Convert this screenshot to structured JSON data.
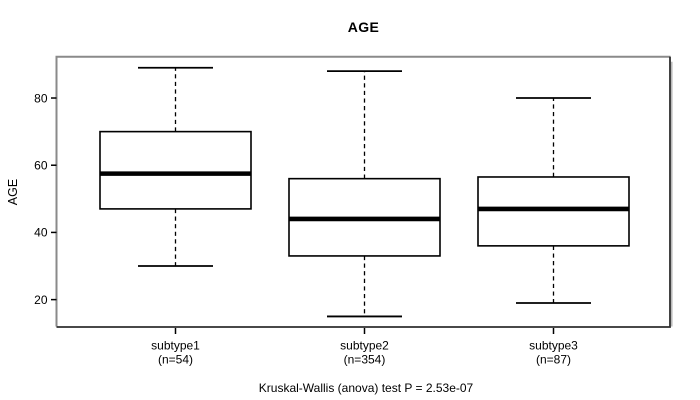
{
  "chart_data": {
    "type": "boxplot",
    "title": "AGE",
    "xlabel": "",
    "ylabel": "AGE",
    "caption": "Kruskal-Wallis (anova) test P = 2.53e-07",
    "ylim": [
      12,
      92
    ],
    "yticks": [
      20,
      40,
      60,
      80
    ],
    "grid": false,
    "legend": "none",
    "frame": true,
    "categories": [
      "subtype1",
      "subtype2",
      "subtype3"
    ],
    "category_counts": [
      "(n=54)",
      "(n=354)",
      "(n=87)"
    ],
    "series": [
      {
        "name": "subtype1",
        "n": 54,
        "whisker_low": 30,
        "q1": 47,
        "median": 57.5,
        "q3": 70,
        "whisker_high": 89,
        "outliers": []
      },
      {
        "name": "subtype2",
        "n": 354,
        "whisker_low": 15,
        "q1": 33,
        "median": 44,
        "q3": 56,
        "whisker_high": 88,
        "outliers": []
      },
      {
        "name": "subtype3",
        "n": 87,
        "whisker_low": 19,
        "q1": 36,
        "median": 47,
        "q3": 56.5,
        "whisker_high": 80,
        "outliers": []
      }
    ],
    "colors": {
      "stroke": "#000000",
      "box_fill": "#ffffff",
      "frame_light": "#8a8a8a",
      "frame_dark": "#2e2e2e",
      "background": "#ffffff"
    }
  }
}
